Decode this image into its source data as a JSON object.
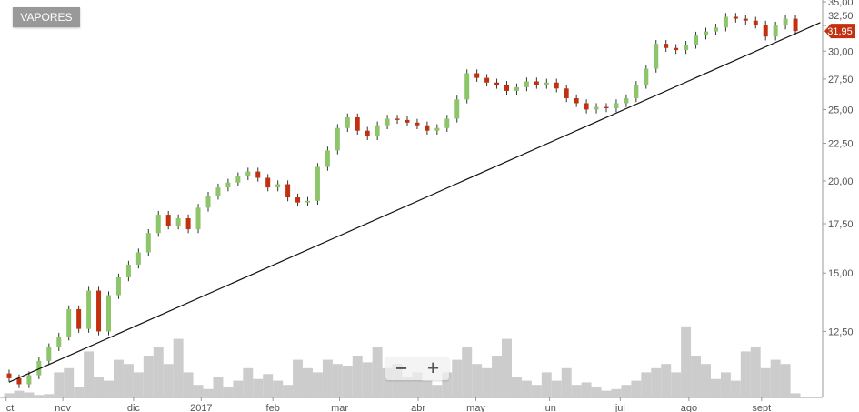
{
  "symbol_button": "VAPORES",
  "zoom_controls": {
    "zoom_out": "−",
    "zoom_in": "+"
  },
  "last_price_label": "31,95",
  "colors": {
    "up": "#8dc56b",
    "down": "#c2300f",
    "volume": "#cccccc",
    "trendline": "#111111",
    "last_price_tag": "#c2300f"
  },
  "chart_data": {
    "type": "candlestick",
    "y_scale": "log",
    "ylim": [
      9.5,
      35
    ],
    "grid": false,
    "y_ticks": [
      "12,50",
      "15,00",
      "17,50",
      "20,00",
      "22,50",
      "25,00",
      "27,50",
      "30,00",
      "32,50",
      "35,00"
    ],
    "y_tick_values": [
      12.5,
      15,
      17.5,
      20,
      22.5,
      25,
      27.5,
      30,
      32.5,
      35
    ],
    "x_ticks": [
      {
        "label": "ct",
        "index": -0.3
      },
      {
        "label": "nov",
        "index": 5.4
      },
      {
        "label": "dic",
        "index": 12.5
      },
      {
        "label": "2017",
        "index": 19.3
      },
      {
        "label": "feb",
        "index": 26.5
      },
      {
        "label": "mar",
        "index": 33.2
      },
      {
        "label": "abr",
        "index": 41.1
      },
      {
        "label": "may",
        "index": 46.9
      },
      {
        "label": "jun",
        "index": 54.3
      },
      {
        "label": "jul",
        "index": 61.4
      },
      {
        "label": "ago",
        "index": 68.3
      },
      {
        "label": "sept",
        "index": 75.6
      }
    ],
    "closes": [
      10.8,
      10.6,
      10.9,
      11.4,
      11.9,
      12.3,
      13.4,
      12.6,
      14.2,
      12.5,
      14.0,
      14.8,
      15.4,
      16.0,
      17.0,
      18.0,
      17.4,
      17.8,
      17.2,
      18.4,
      19.1,
      19.6,
      19.9,
      20.3,
      20.6,
      20.2,
      19.6,
      19.8,
      19.0,
      18.7,
      18.8,
      20.9,
      22.0,
      23.6,
      24.4,
      23.4,
      23.0,
      23.8,
      24.3,
      24.2,
      24.0,
      23.8,
      23.4,
      23.6,
      24.3,
      25.8,
      28.0,
      27.6,
      27.2,
      27.0,
      26.5,
      26.8,
      27.3,
      27.0,
      27.2,
      26.7,
      25.9,
      25.5,
      25.0,
      25.2,
      25.1,
      25.5,
      25.9,
      27.0,
      28.4,
      30.7,
      30.3,
      30.1,
      30.6,
      31.5,
      31.9,
      32.3,
      33.4,
      33.2,
      33.0,
      32.6,
      31.4,
      32.5,
      33.2,
      31.95
    ],
    "volumes_relative": [
      5,
      8,
      6,
      3,
      4,
      30,
      35,
      12,
      55,
      25,
      20,
      45,
      40,
      30,
      50,
      60,
      40,
      70,
      30,
      15,
      10,
      25,
      12,
      20,
      35,
      22,
      28,
      20,
      15,
      45,
      35,
      30,
      45,
      40,
      38,
      50,
      42,
      60,
      35,
      40,
      25,
      30,
      20,
      15,
      30,
      45,
      60,
      40,
      35,
      50,
      70,
      25,
      20,
      15,
      30,
      20,
      35,
      15,
      18,
      12,
      8,
      10,
      15,
      20,
      30,
      35,
      40,
      30,
      85,
      50,
      40,
      22,
      30,
      20,
      55,
      60,
      35,
      45,
      40,
      5
    ],
    "last_price": 31.95,
    "trendline": {
      "start": {
        "index": 0,
        "value": 10.67
      },
      "end": {
        "index": 81.5,
        "value": 32.8
      }
    }
  }
}
